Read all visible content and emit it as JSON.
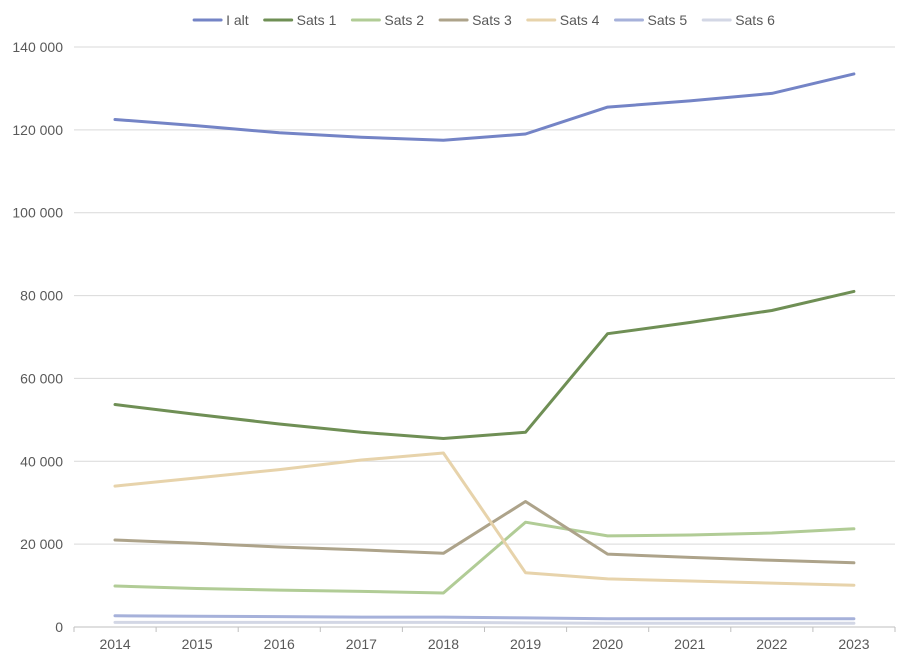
{
  "chart_data": {
    "type": "line",
    "title": "",
    "xlabel": "",
    "ylabel": "",
    "legend_position": "top",
    "grid": true,
    "ylim": [
      0,
      140000
    ],
    "y_ticks": [
      {
        "value": 0,
        "label": "0"
      },
      {
        "value": 20000,
        "label": "20 000"
      },
      {
        "value": 40000,
        "label": "40 000"
      },
      {
        "value": 60000,
        "label": "60 000"
      },
      {
        "value": 80000,
        "label": "80 000"
      },
      {
        "value": 100000,
        "label": "100 000"
      },
      {
        "value": 120000,
        "label": "120 000"
      },
      {
        "value": 140000,
        "label": "140 000"
      }
    ],
    "categories": [
      "2014",
      "2015",
      "2016",
      "2017",
      "2018",
      "2019",
      "2020",
      "2021",
      "2022",
      "2023"
    ],
    "series": [
      {
        "name": "I alt",
        "color": "#7484c6",
        "values": [
          122500,
          121000,
          119300,
          118200,
          117500,
          119000,
          125500,
          127000,
          128800,
          133500
        ]
      },
      {
        "name": "Sats 1",
        "color": "#6f8f55",
        "values": [
          53700,
          51300,
          49000,
          47000,
          45500,
          47000,
          70800,
          73500,
          76400,
          81000
        ]
      },
      {
        "name": "Sats 2",
        "color": "#b1cc96",
        "values": [
          9900,
          9300,
          8900,
          8600,
          8200,
          25300,
          22000,
          22200,
          22700,
          23700
        ]
      },
      {
        "name": "Sats 3",
        "color": "#ada38a",
        "values": [
          21000,
          20200,
          19300,
          18600,
          17800,
          30300,
          17600,
          16800,
          16100,
          15500
        ]
      },
      {
        "name": "Sats 4",
        "color": "#e7d3ab",
        "values": [
          34000,
          36000,
          38000,
          40300,
          42000,
          13100,
          11600,
          11100,
          10600,
          10100
        ]
      },
      {
        "name": "Sats 5",
        "color": "#a6b1da",
        "values": [
          2700,
          2600,
          2500,
          2400,
          2400,
          2200,
          2000,
          2000,
          2000,
          2000
        ]
      },
      {
        "name": "Sats 6",
        "color": "#d3d7e5",
        "values": [
          1100,
          1100,
          1100,
          1100,
          1100,
          1000,
          900,
          900,
          900,
          900
        ]
      }
    ]
  }
}
